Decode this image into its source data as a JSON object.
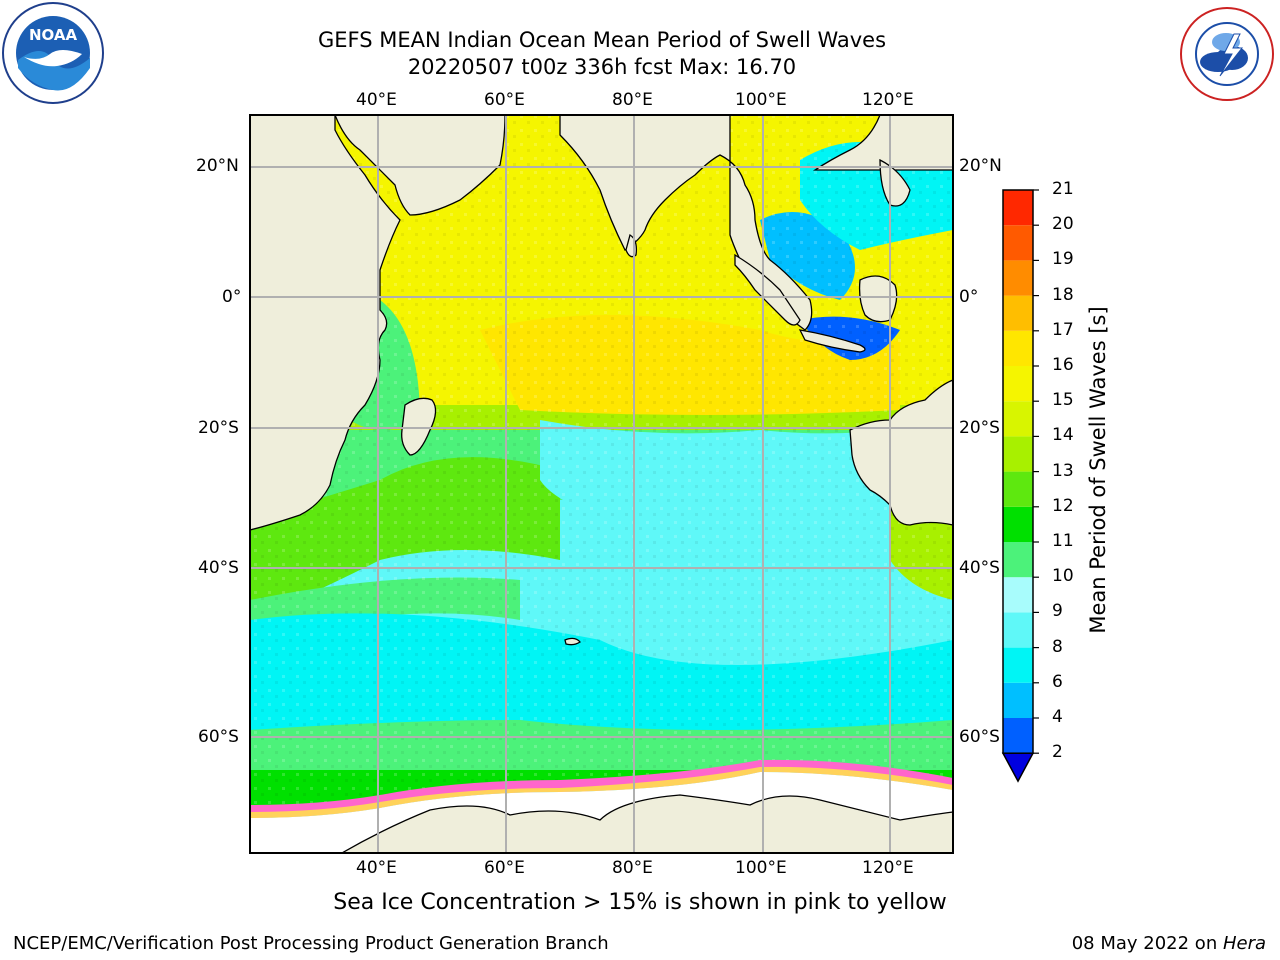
{
  "title": {
    "line1": "GEFS MEAN Indian Ocean Mean Period of Swell Waves",
    "line2": "20220507 t00z 336h fcst   Max: 16.70"
  },
  "logos": {
    "left": {
      "name": "NOAA",
      "text": "NOAA",
      "ring_text": "NATIONAL OCEANIC AND ATMOSPHERIC ADMINISTRATION · U.S. DEPARTMENT OF COMMERCE"
    },
    "right": {
      "name": "National Weather Service",
      "ring_text": "NATIONAL WEATHER SERVICE"
    }
  },
  "map": {
    "lon_ticks_top": [
      "40°E",
      "60°E",
      "80°E",
      "100°E",
      "120°E"
    ],
    "lon_ticks_bottom": [
      "40°E",
      "60°E",
      "80°E",
      "100°E",
      "120°E"
    ],
    "lat_ticks_left": [
      "20°N",
      "0°",
      "20°S",
      "40°S",
      "60°S"
    ],
    "lat_ticks_right": [
      "20°N",
      "0°",
      "20°S",
      "40°S",
      "60°S"
    ],
    "colors": {
      "land": "#efeedb",
      "sea_ice": "#ffffff",
      "grid": "#b0b0b0"
    }
  },
  "colorbar": {
    "title": "Mean Period of Swell Waves [s]",
    "labels": [
      "2",
      "4",
      "6",
      "8",
      "9",
      "10",
      "11",
      "12",
      "13",
      "14",
      "15",
      "16",
      "17",
      "18",
      "19",
      "20",
      "21"
    ],
    "colors": [
      "#0060ff",
      "#00bfff",
      "#00f5f5",
      "#5ff8f8",
      "#a8fcfc",
      "#4cf27a",
      "#00e000",
      "#5ee80f",
      "#a8f000",
      "#d8f500",
      "#f5f500",
      "#ffe600",
      "#ffbe00",
      "#ff8c00",
      "#ff5a00",
      "#ff2800"
    ],
    "under_color": "#0000e0"
  },
  "caption": "Sea Ice Concentration > 15% is shown in pink to yellow",
  "footer": {
    "left": "NCEP/EMC/Verification Post Processing Product Generation Branch",
    "right_prefix": "08 May 2022 on ",
    "right_machine": "Hera"
  }
}
